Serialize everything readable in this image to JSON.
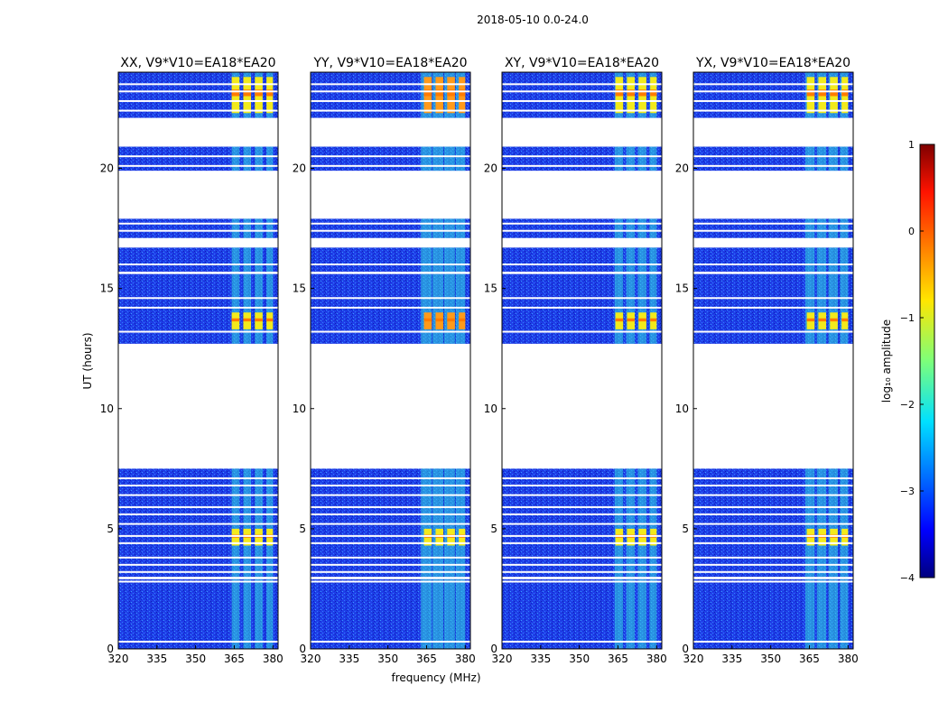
{
  "figure_title": "2018-05-10 0.0-24.0",
  "chart_data": {
    "type": "heatmap",
    "suptitle": "2018-05-10 0.0-24.0",
    "xlabel": "frequency (MHz)",
    "ylabel": "UT (hours)",
    "xlim": [
      320,
      382
    ],
    "ylim": [
      0,
      24
    ],
    "x_ticks": [
      "320",
      "335",
      "350",
      "365",
      "380"
    ],
    "x_tick_values": [
      320,
      335,
      350,
      365,
      380
    ],
    "y_ticks": [
      "0",
      "5",
      "10",
      "15",
      "20"
    ],
    "y_tick_values": [
      0,
      5,
      10,
      15,
      20
    ],
    "panels": [
      {
        "title": "XX, V9*V10=EA18*EA20",
        "pol": "XX",
        "rfi_band_start": 364
      },
      {
        "title": "YY, V9*V10=EA18*EA20",
        "pol": "YY",
        "rfi_band_start": 360
      },
      {
        "title": "XY, V9*V10=EA18*EA20",
        "pol": "XY",
        "rfi_band_start": 363
      },
      {
        "title": "YX, V9*V10=EA18*EA20",
        "pol": "YX",
        "rfi_band_start": 362
      }
    ],
    "data_blocks_ut": [
      [
        0.0,
        2.9
      ],
      [
        3.0,
        7.5
      ],
      [
        12.7,
        15.6
      ],
      [
        15.7,
        16.7
      ],
      [
        17.1,
        17.9
      ],
      [
        19.9,
        20.9
      ],
      [
        22.1,
        24.0
      ]
    ],
    "gap_lines_ut": [
      0.3,
      2.8,
      3.2,
      3.5,
      3.8,
      4.4,
      4.7,
      5.2,
      5.6,
      5.9,
      6.4,
      6.8,
      7.1,
      13.2,
      14.2,
      14.6,
      16.0,
      17.4,
      17.7,
      20.1,
      20.5,
      22.4,
      22.8,
      23.2,
      23.5
    ],
    "rfi_channels_mhz": [
      [
        364,
        367
      ],
      [
        368.5,
        371.5
      ],
      [
        373,
        376
      ],
      [
        377.5,
        380
      ]
    ],
    "bright_bursts_ut": [
      [
        4.3,
        5.0
      ],
      [
        13.3,
        14.0
      ],
      [
        22.3,
        23.8
      ]
    ],
    "colorbar": {
      "label": "log₁₀ amplitude",
      "min": -4,
      "max": 1,
      "ticks": [
        "1",
        "0",
        "−1",
        "−2",
        "−3",
        "−4"
      ],
      "tick_values": [
        1,
        0,
        -1,
        -2,
        -3,
        -4
      ],
      "colormap": "jet"
    }
  }
}
